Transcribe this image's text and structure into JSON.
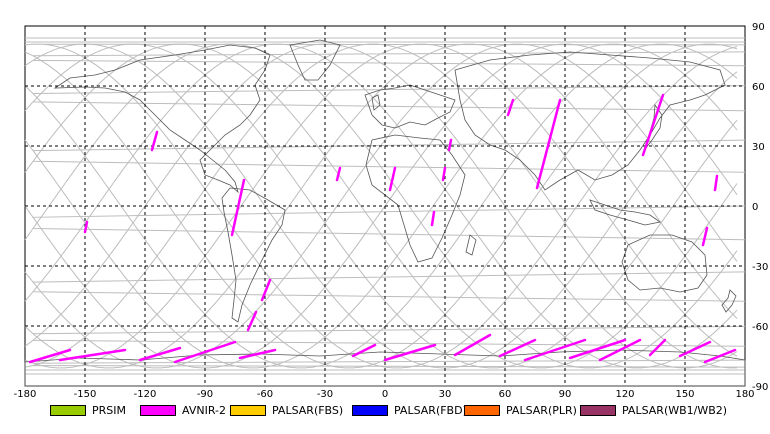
{
  "map": {
    "x_ticks": [
      "-180",
      "-150",
      "-120",
      "-90",
      "-60",
      "-30",
      "0",
      "30",
      "60",
      "90",
      "120",
      "150",
      "180"
    ],
    "y_ticks": [
      "90",
      "60",
      "30",
      "0",
      "-30",
      "-60",
      "-90"
    ],
    "grid_color": "#000000",
    "orbit_color": "#bdbdbd",
    "coast_color": "#555555",
    "swath_color": "#ff00ff"
  },
  "legend": [
    {
      "label": "PRSIM",
      "color": "#99cc00"
    },
    {
      "label": "AVNIR-2",
      "color": "#ff00ff"
    },
    {
      "label": "PALSAR(FBS)",
      "color": "#ffcc00"
    },
    {
      "label": "PALSAR(FBD)",
      "color": "#0000ff"
    },
    {
      "label": "PALSAR(PLR)",
      "color": "#ff6600"
    },
    {
      "label": "PALSAR(WB1/WB2)",
      "color": "#993366"
    }
  ]
}
